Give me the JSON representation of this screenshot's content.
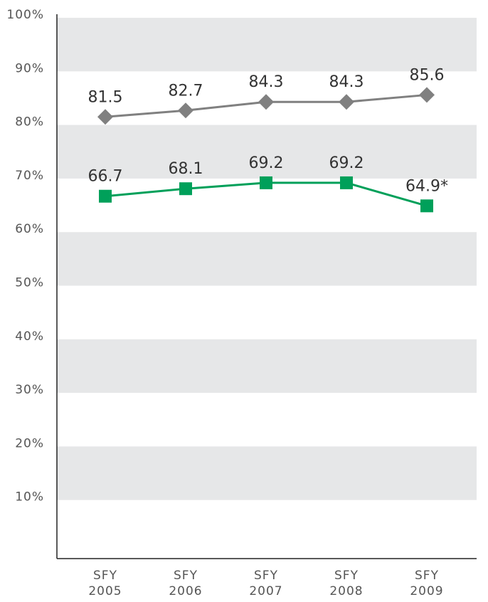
{
  "chart_data": {
    "type": "line",
    "categories": [
      "SFY 2005",
      "SFY 2006",
      "SFY 2007",
      "SFY 2008",
      "SFY 2009"
    ],
    "series": [
      {
        "color": "#808080",
        "marker": "diamond",
        "values": [
          81.5,
          82.7,
          84.3,
          84.3,
          85.6
        ]
      },
      {
        "color": "#00a05a",
        "marker": "square",
        "values": [
          66.7,
          68.1,
          69.2,
          69.2,
          64.9
        ],
        "value_labels": [
          "66.7",
          "68.1",
          "69.2",
          "69.2",
          "64.9*"
        ]
      }
    ],
    "ylim": [
      0,
      100
    ],
    "yticks": [
      {
        "value": 10,
        "label": "10%"
      },
      {
        "value": 20,
        "label": "20%"
      },
      {
        "value": 30,
        "label": "30%"
      },
      {
        "value": 40,
        "label": "40%"
      },
      {
        "value": 50,
        "label": "50%"
      },
      {
        "value": 60,
        "label": "60%"
      },
      {
        "value": 70,
        "label": "70%"
      },
      {
        "value": 80,
        "label": "80%"
      },
      {
        "value": 90,
        "label": "90%"
      },
      {
        "value": 100,
        "label": "100%"
      }
    ],
    "grid": "bands"
  }
}
